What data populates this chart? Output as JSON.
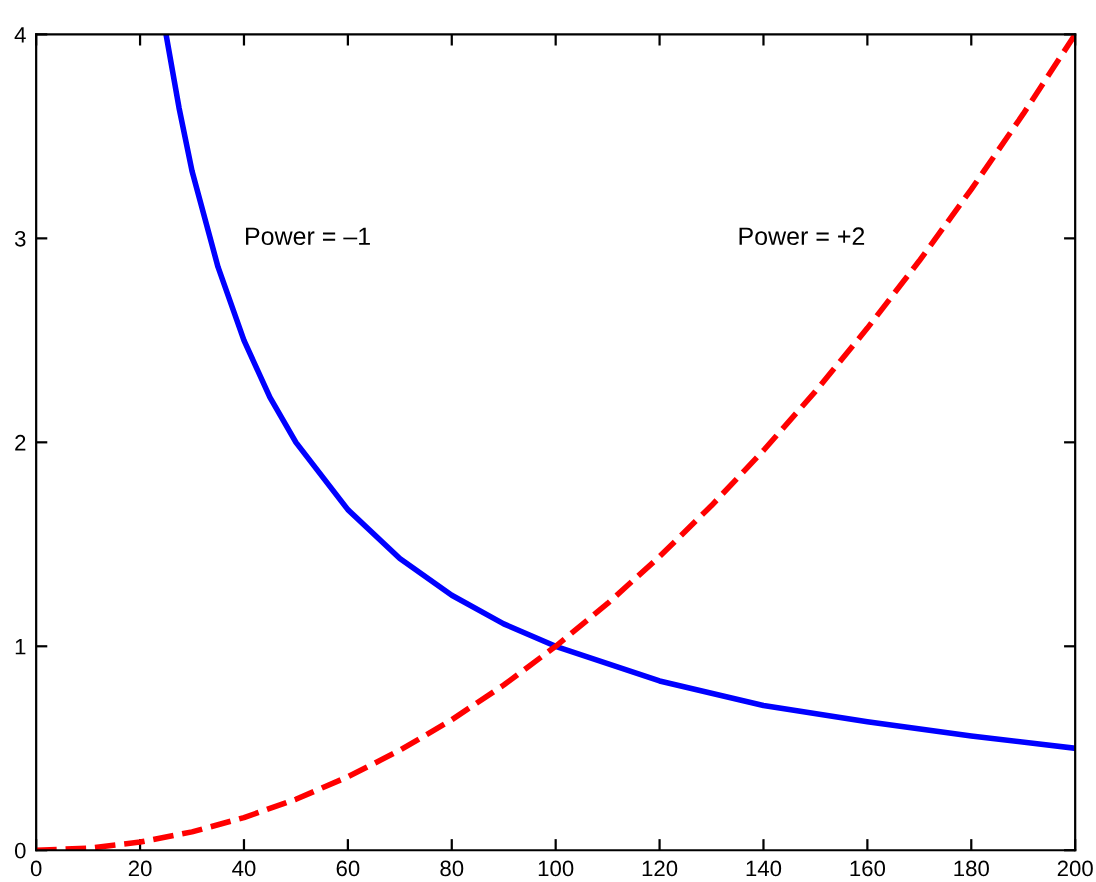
{
  "chart_data": {
    "type": "line",
    "xlim": [
      0,
      200
    ],
    "ylim": [
      0,
      4
    ],
    "xticks": [
      0,
      20,
      40,
      60,
      80,
      100,
      120,
      140,
      160,
      180,
      200
    ],
    "yticks": [
      0,
      1,
      2,
      3,
      4
    ],
    "grid": false,
    "legend": false,
    "series": [
      {
        "color": "#0000ff",
        "line_style": "solid",
        "x": [
          25,
          27.5,
          30,
          35,
          40,
          45,
          50,
          60,
          70,
          80,
          90,
          100,
          120,
          140,
          160,
          180,
          200
        ],
        "values": [
          4,
          3.64,
          3.33,
          2.86,
          2.5,
          2.22,
          2,
          1.67,
          1.43,
          1.25,
          1.11,
          1,
          0.83,
          0.71,
          0.63,
          0.56,
          0.5
        ]
      },
      {
        "color": "#ff0000",
        "line_style": "dashed",
        "x": [
          0,
          10,
          20,
          30,
          40,
          50,
          60,
          70,
          80,
          90,
          100,
          110,
          120,
          130,
          140,
          150,
          160,
          170,
          180,
          190,
          200
        ],
        "values": [
          0,
          0.01,
          0.04,
          0.09,
          0.16,
          0.25,
          0.36,
          0.49,
          0.64,
          0.81,
          1,
          1.21,
          1.44,
          1.69,
          1.96,
          2.25,
          2.56,
          2.89,
          3.24,
          3.61,
          4
        ]
      }
    ],
    "annotations": [
      "Power = –1",
      "Power = +2"
    ]
  }
}
